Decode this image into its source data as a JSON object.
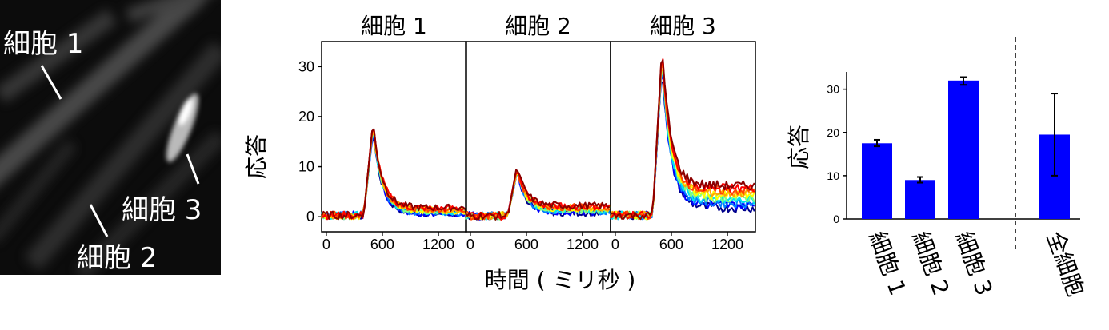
{
  "micrograph": {
    "labels": [
      {
        "key": "cell1",
        "text": "細胞 1"
      },
      {
        "key": "cell2",
        "text": "細胞 2"
      },
      {
        "key": "cell3",
        "text": "細胞 3"
      }
    ]
  },
  "chart_data": [
    {
      "type": "line",
      "panels": [
        {
          "title": "細胞 1",
          "peak": 18,
          "baseline": 0.3,
          "tail": 1.2,
          "spread": 0.6
        },
        {
          "title": "細胞 2",
          "peak": 9.5,
          "baseline": 0.2,
          "tail": 1.5,
          "spread": 0.7
        },
        {
          "title": "細胞 3",
          "peak": 32,
          "baseline": 0.3,
          "tail": 4.0,
          "spread": 2.2
        }
      ],
      "onset_ms": 400,
      "peak_ms": 500,
      "x_range": [
        -50,
        1500
      ],
      "x_ticks": [
        0,
        600,
        1200
      ],
      "ylim": [
        -3,
        35
      ],
      "y_ticks": [
        0,
        10,
        20,
        30
      ],
      "xlabel": "時間 ( ミリ秒 )",
      "ylabel": "応答",
      "trace_colors": [
        "#00008b",
        "#0000ff",
        "#0080ff",
        "#00e5ee",
        "#7fff7f",
        "#ffff00",
        "#ffa500",
        "#ff4500",
        "#ff0000",
        "#8b0000"
      ]
    },
    {
      "type": "bar",
      "categories": [
        "細胞 1",
        "細胞 2",
        "細胞 3",
        "全細胞"
      ],
      "values": [
        17.5,
        9.0,
        32.0,
        19.5
      ],
      "errors": [
        [
          16.8,
          18.3
        ],
        [
          8.4,
          9.7
        ],
        [
          31.0,
          32.8
        ],
        [
          10.0,
          29.0
        ]
      ],
      "ylabel": "応答",
      "ylim": [
        0,
        34
      ],
      "y_ticks": [
        0,
        10,
        20,
        30
      ],
      "bar_color": "#0000ff",
      "separator": "dashed"
    }
  ]
}
